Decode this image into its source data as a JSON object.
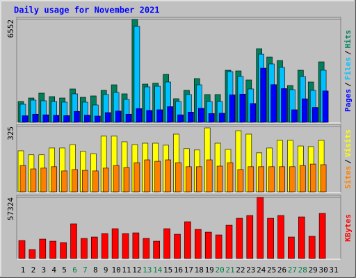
{
  "chart_data": [
    {
      "type": "bar",
      "title": "Daily usage for November 2021",
      "categories": [
        "1",
        "2",
        "3",
        "4",
        "5",
        "6",
        "7",
        "8",
        "9",
        "10",
        "11",
        "12",
        "13",
        "14",
        "15",
        "16",
        "17",
        "18",
        "19",
        "20",
        "21",
        "22",
        "23",
        "24",
        "25",
        "26",
        "27",
        "28",
        "29",
        "30",
        "31"
      ],
      "series": [
        {
          "name": "Hits",
          "color": "#00805c",
          "values": [
            1329,
            1550,
            1860,
            1639,
            1550,
            2126,
            1594,
            1683,
            2037,
            2390,
            1816,
            6552,
            2435,
            2500,
            3056,
            1506,
            2037,
            2789,
            1771,
            1771,
            3320,
            3276,
            2700,
            4691,
            4159,
            3939,
            2346,
            3320,
            2568,
            3852,
            null
          ]
        },
        {
          "name": "Files",
          "color": "#00c0ff",
          "values": [
            1152,
            1417,
            1373,
            1329,
            1285,
            1816,
            1285,
            1107,
            1771,
            1904,
            1461,
            6110,
            2258,
            2300,
            2568,
            1329,
            1771,
            2390,
            1329,
            1329,
            3232,
            2922,
            2126,
            4337,
            3719,
            3497,
            2080,
            2922,
            2037,
            3320,
            null
          ]
        },
        {
          "name": "Pages",
          "color": "#0000ff",
          "values": [
            420,
            520,
            480,
            450,
            430,
            700,
            460,
            400,
            620,
            720,
            520,
            880,
            760,
            800,
            1000,
            480,
            650,
            900,
            560,
            580,
            1750,
            1800,
            1200,
            3450,
            2400,
            2150,
            800,
            1500,
            950,
            2000,
            null
          ]
        }
      ],
      "legend_separator": "/",
      "ylim": [
        0,
        6552
      ],
      "yticks": [
        6552
      ]
    },
    {
      "type": "bar",
      "categories": [
        "1",
        "2",
        "3",
        "4",
        "5",
        "6",
        "7",
        "8",
        "9",
        "10",
        "11",
        "12",
        "13",
        "14",
        "15",
        "16",
        "17",
        "18",
        "19",
        "20",
        "21",
        "22",
        "23",
        "24",
        "25",
        "26",
        "27",
        "28",
        "29",
        "30",
        "31"
      ],
      "series": [
        {
          "name": "Visits",
          "color": "#ffff00",
          "values": [
            204,
            184,
            184,
            218,
            218,
            235,
            201,
            190,
            277,
            277,
            249,
            235,
            242,
            242,
            232,
            287,
            215,
            208,
            318,
            242,
            211,
            304,
            287,
            194,
            218,
            256,
            256,
            228,
            225,
            256,
            null
          ]
        },
        {
          "name": "Sites",
          "color": "#ff8000",
          "values": [
            131,
            114,
            118,
            125,
            104,
            111,
            107,
            104,
            118,
            131,
            121,
            145,
            159,
            152,
            159,
            145,
            125,
            125,
            159,
            128,
            145,
            111,
            125,
            125,
            125,
            125,
            125,
            131,
            138,
            135,
            null
          ]
        }
      ],
      "legend_separator": "/",
      "ylim": [
        0,
        325
      ],
      "yticks": [
        325
      ]
    },
    {
      "type": "bar",
      "categories": [
        "1",
        "2",
        "3",
        "4",
        "5",
        "6",
        "7",
        "8",
        "9",
        "10",
        "11",
        "12",
        "13",
        "14",
        "15",
        "16",
        "17",
        "18",
        "19",
        "20",
        "21",
        "22",
        "23",
        "24",
        "25",
        "26",
        "27",
        "28",
        "29",
        "30",
        "31"
      ],
      "label_colors": [
        "#000000",
        "#000000",
        "#000000",
        "#000000",
        "#000000",
        "#008040",
        "#008040",
        "#000000",
        "#000000",
        "#000000",
        "#000000",
        "#000000",
        "#008040",
        "#008040",
        "#000000",
        "#000000",
        "#000000",
        "#000000",
        "#000000",
        "#008040",
        "#008040",
        "#000000",
        "#000000",
        "#000000",
        "#000000",
        "#000000",
        "#008040",
        "#008040",
        "#000000",
        "#000000",
        "#000000"
      ],
      "series": [
        {
          "name": "KBytes",
          "color": "#ff0000",
          "values": [
            16930,
            8460,
            18230,
            16280,
            14980,
            32560,
            18880,
            20180,
            23440,
            27990,
            23440,
            24090,
            18880,
            16280,
            27990,
            22790,
            34510,
            27340,
            24740,
            22140,
            31250,
            37760,
            40360,
            57324,
            37760,
            40360,
            20180,
            39060,
            20830,
            42320,
            null
          ]
        }
      ],
      "ylim": [
        0,
        57324
      ],
      "yticks": [
        57324
      ]
    }
  ]
}
